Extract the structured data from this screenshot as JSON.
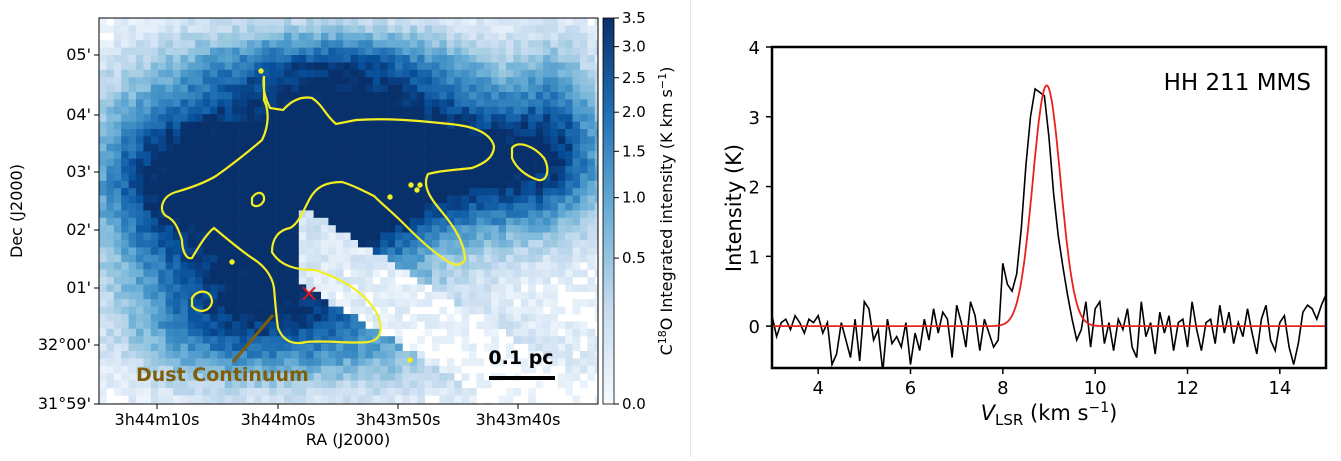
{
  "chart_data": [
    {
      "type": "heatmap",
      "xlabel": "RA (J2000)",
      "ylabel": "Dec (J2000)",
      "x_ticks": [
        "3h44m10s",
        "3h44m0s",
        "3h43m50s",
        "3h43m40s"
      ],
      "y_ticks": [
        "05'",
        "04'",
        "03'",
        "02'",
        "01'",
        "32°00'",
        "31°59'"
      ],
      "colorbar": {
        "label_prefix": "C",
        "label_sup": "18",
        "label_main": "O Integrated intensity (K km s",
        "label_exp": "−1",
        "label_close": ")",
        "range": [
          0.0,
          3.5
        ],
        "ticks": [
          "3.5",
          "3.0",
          "2.5",
          "2.0",
          "1.5",
          "1.0",
          "0.5",
          "0.0"
        ],
        "colormap": "Blues (sqrt stretch)"
      },
      "annotations": {
        "scale_bar": "0.1 pc",
        "contour_label": "Dust Continuum",
        "source_marker": "×"
      },
      "colors": {
        "contour": "#f2ee22",
        "marker": "#e0141e",
        "contour_label": "#7f5f0c"
      }
    },
    {
      "type": "line",
      "title": "HH 211 MMS",
      "xlabel_var": "V",
      "xlabel_sub": "LSR",
      "xlabel_unit": " (km s",
      "xlabel_exp": "−1",
      "xlabel_close": ")",
      "ylabel": "Intensity (K)",
      "xlim": [
        3,
        15
      ],
      "ylim": [
        -0.6,
        4
      ],
      "x_ticks": [
        4,
        6,
        8,
        10,
        12,
        14
      ],
      "y_ticks": [
        0,
        1,
        2,
        3,
        4
      ],
      "series": [
        {
          "kind": "observed spectrum",
          "color": "#000000",
          "x": [
            3.0,
            3.1,
            3.2,
            3.3,
            3.4,
            3.5,
            3.6,
            3.7,
            3.8,
            3.9,
            4.0,
            4.1,
            4.2,
            4.3,
            4.4,
            4.5,
            4.6,
            4.7,
            4.8,
            4.9,
            5.0,
            5.1,
            5.2,
            5.3,
            5.4,
            5.5,
            5.6,
            5.7,
            5.8,
            5.9,
            6.0,
            6.1,
            6.2,
            6.3,
            6.4,
            6.5,
            6.6,
            6.7,
            6.8,
            6.9,
            7.0,
            7.1,
            7.2,
            7.3,
            7.4,
            7.5,
            7.6,
            7.7,
            7.8,
            7.9,
            8.0,
            8.1,
            8.2,
            8.3,
            8.4,
            8.5,
            8.6,
            8.7,
            8.8,
            8.9,
            9.0,
            9.1,
            9.2,
            9.3,
            9.4,
            9.5,
            9.6,
            9.7,
            9.8,
            9.9,
            10.0,
            10.1,
            10.2,
            10.3,
            10.4,
            10.5,
            10.6,
            10.7,
            10.8,
            10.9,
            11.0,
            11.1,
            11.2,
            11.3,
            11.4,
            11.5,
            11.6,
            11.7,
            11.8,
            11.9,
            12.0,
            12.1,
            12.2,
            12.3,
            12.4,
            12.5,
            12.6,
            12.7,
            12.8,
            12.9,
            13.0,
            13.1,
            13.2,
            13.3,
            13.4,
            13.5,
            13.6,
            13.7,
            13.8,
            13.9,
            14.0,
            14.1,
            14.2,
            14.3,
            14.4,
            14.5,
            14.6,
            14.7,
            14.8,
            14.9,
            15.0
          ],
          "y": [
            0.15,
            -0.15,
            0.05,
            0.1,
            -0.05,
            0.15,
            0.05,
            -0.1,
            0.1,
            0.05,
            0.15,
            -0.1,
            0.05,
            -0.55,
            -0.4,
            0.05,
            -0.2,
            -0.45,
            0.1,
            -0.5,
            0.35,
            0.25,
            -0.2,
            -0.05,
            -0.65,
            0.1,
            -0.25,
            -0.15,
            -0.3,
            0.05,
            -0.55,
            -0.1,
            -0.35,
            0.1,
            -0.2,
            0.25,
            -0.1,
            0.2,
            0.1,
            -0.45,
            0.3,
            0.05,
            -0.3,
            0.35,
            0.15,
            -0.35,
            0.1,
            -0.1,
            -0.3,
            -0.2,
            0.9,
            0.6,
            0.5,
            0.75,
            1.4,
            2.3,
            3.0,
            3.4,
            3.35,
            3.3,
            2.7,
            1.9,
            1.3,
            0.85,
            0.45,
            0.1,
            -0.2,
            -0.05,
            0.35,
            -0.3,
            0.25,
            0.35,
            -0.25,
            0.05,
            -0.35,
            0.1,
            -0.05,
            0.25,
            -0.3,
            -0.45,
            0.35,
            -0.15,
            0.05,
            -0.4,
            0.2,
            -0.1,
            0.15,
            -0.35,
            0.05,
            0.1,
            -0.3,
            0.35,
            -0.05,
            -0.35,
            0.05,
            0.1,
            -0.25,
            0.3,
            -0.1,
            0.2,
            -0.25,
            0.05,
            -0.15,
            0.25,
            -0.1,
            -0.4,
            0.1,
            0.3,
            -0.2,
            -0.35,
            0.05,
            0.15,
            -0.3,
            -0.55,
            -0.25,
            0.2,
            0.3,
            0.25,
            0.1,
            0.3,
            0.45
          ]
        },
        {
          "kind": "Gaussian fit",
          "color": "#e8221b",
          "amplitude": 3.45,
          "center": 8.95,
          "sigma": 0.3
        }
      ]
    }
  ]
}
